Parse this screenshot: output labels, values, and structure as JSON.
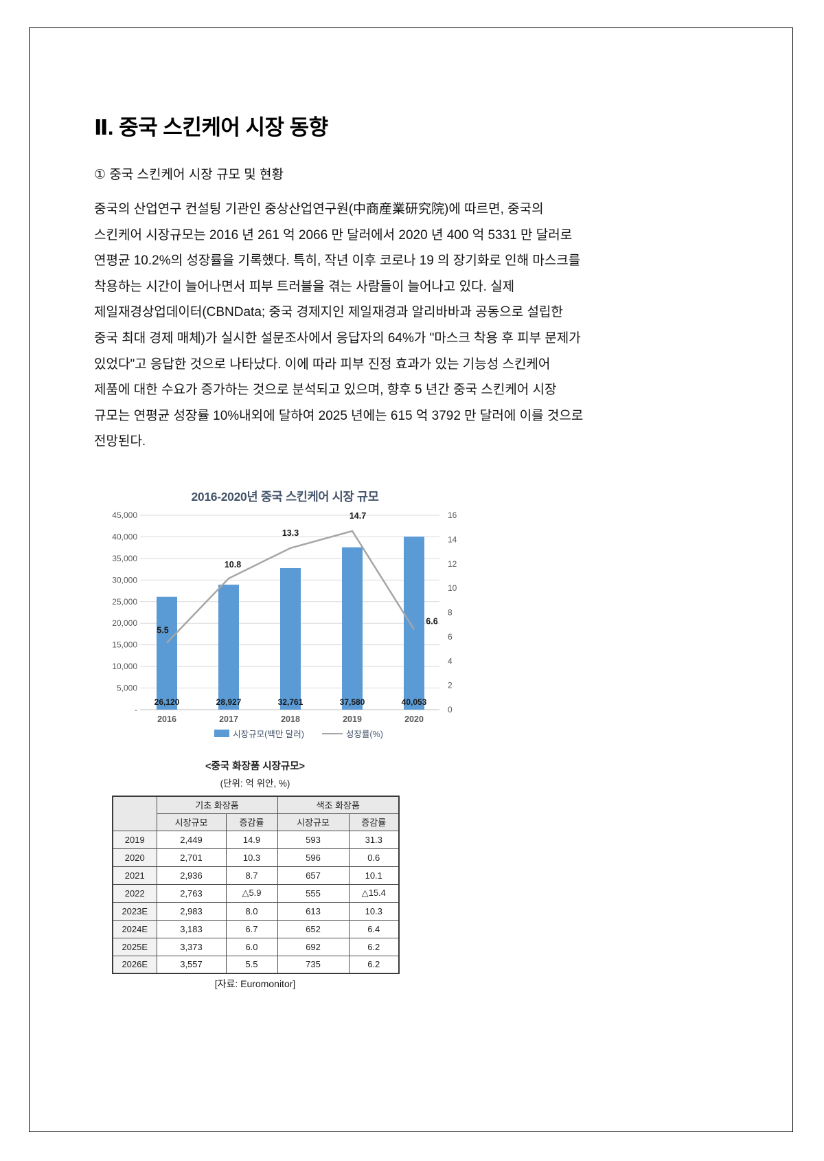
{
  "doc": {
    "section_title": "Ⅱ. 중국 스킨케어 시장 동향",
    "subsection_heading": "① 중국 스킨케어 시장 규모 및 현황",
    "paragraph_lines": [
      "중국의 산업연구 컨설팅 기관인 중상산업연구원(中商産業研究院)에 따르면, 중국의",
      "스킨케어 시장규모는 2016 년 261 억 2066 만 달러에서 2020 년 400 억 5331 만 달러로",
      "연평균 10.2%의 성장률을 기록했다. 특히, 작년 이후 코로나 19 의 장기화로 인해 마스크를",
      "착용하는 시간이 늘어나면서 피부 트러블을 겪는 사람들이 늘어나고 있다. 실제",
      "제일재경상업데이터(CBNData; 중국 경제지인 제일재경과 알리바바과 공동으로 설립한",
      "중국 최대 경제 매체)가 실시한 설문조사에서 응답자의 64%가 \"마스크 착용 후 피부 문제가",
      "있었다\"고 응답한 것으로 나타났다. 이에 따라 피부 진정 효과가 있는 기능성 스킨케어",
      "제품에 대한 수요가 증가하는 것으로 분석되고 있으며, 향후 5 년간 중국 스킨케어 시장",
      "규모는 연평균 성장률 10%내외에 달하여 2025 년에는 615 억 3792 만 달러에 이를 것으로",
      "전망된다."
    ]
  },
  "chart_data": {
    "type": "bar",
    "title": "2016-2020년 중국 스킨케어 시장 규모",
    "categories": [
      "2016",
      "2017",
      "2018",
      "2019",
      "2020"
    ],
    "series": [
      {
        "name": "시장규모(백만 달러)",
        "type": "bar",
        "axis": "left",
        "values": [
          26120,
          28927,
          32761,
          37580,
          40053
        ],
        "value_labels": [
          "26,120",
          "28,927",
          "32,761",
          "37,580",
          "40,053"
        ],
        "color": "#5B9BD5"
      },
      {
        "name": "성장률(%)",
        "type": "line",
        "axis": "right",
        "values": [
          5.5,
          10.8,
          13.3,
          14.7,
          6.6
        ],
        "value_labels": [
          "5.5",
          "10.8",
          "13.3",
          "14.7",
          "6.6"
        ],
        "color": "#A6A6A6"
      }
    ],
    "left_axis": {
      "min": 0,
      "max": 45000,
      "step": 5000,
      "tick_labels": [
        "45,000",
        "40,000",
        "35,000",
        "30,000",
        "25,000",
        "20,000",
        "15,000",
        "10,000",
        "5,000",
        "-"
      ]
    },
    "right_axis": {
      "min": 0,
      "max": 16,
      "step": 2,
      "tick_labels": [
        "16",
        "14",
        "12",
        "10",
        "8",
        "6",
        "4",
        "2",
        "0"
      ]
    },
    "grid": true,
    "legend_position": "bottom"
  },
  "market_table": {
    "caption": "<중국 화장품 시장규모>",
    "unit_note": "(단위: 억 위안, %)",
    "col_groups": [
      "기초 화장품",
      "색조 화장품"
    ],
    "sub_headers": [
      "시장규모",
      "증감률",
      "시장규모",
      "증감률"
    ],
    "rows": [
      {
        "year": "2019",
        "cells": [
          "2,449",
          "14.9",
          "593",
          "31.3"
        ]
      },
      {
        "year": "2020",
        "cells": [
          "2,701",
          "10.3",
          "596",
          "0.6"
        ]
      },
      {
        "year": "2021",
        "cells": [
          "2,936",
          "8.7",
          "657",
          "10.1"
        ]
      },
      {
        "year": "2022",
        "cells": [
          "2,763",
          "△5.9",
          "555",
          "△15.4"
        ]
      },
      {
        "year": "2023E",
        "cells": [
          "2,983",
          "8.0",
          "613",
          "10.3"
        ]
      },
      {
        "year": "2024E",
        "cells": [
          "3,183",
          "6.7",
          "652",
          "6.4"
        ]
      },
      {
        "year": "2025E",
        "cells": [
          "3,373",
          "6.0",
          "692",
          "6.2"
        ]
      },
      {
        "year": "2026E",
        "cells": [
          "3,557",
          "5.5",
          "735",
          "6.2"
        ]
      }
    ],
    "source": "[자료: Euromonitor]"
  },
  "colors": {
    "bar": "#5B9BD5",
    "line": "#A6A6A6",
    "chart_title": "#44546A",
    "axis_text": "#595959",
    "gridline": "#D9D9D9"
  }
}
